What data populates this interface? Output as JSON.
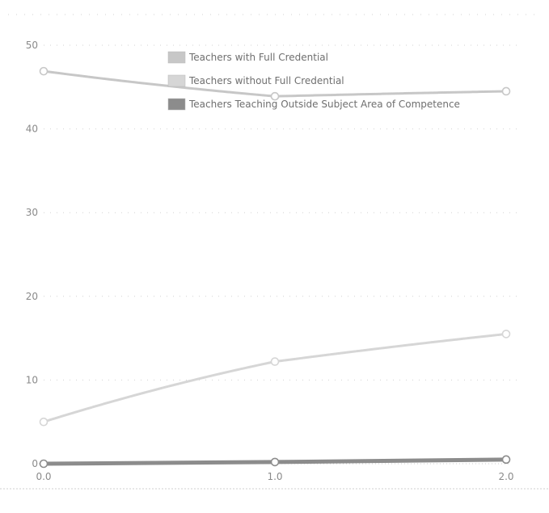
{
  "chart_data": {
    "type": "line",
    "title": "",
    "xlabel": "",
    "ylabel": "",
    "x": [
      0.0,
      1.0,
      2.0
    ],
    "x_tick_labels": [
      "0.0",
      "1.0",
      "2.0"
    ],
    "xlim": [
      0.0,
      2.0
    ],
    "ylim": [
      0,
      50
    ],
    "y_ticks": [
      0,
      10,
      20,
      30,
      40,
      50
    ],
    "y_tick_labels": [
      "0",
      "10",
      "20",
      "30",
      "40",
      "50"
    ],
    "grid": "dotted horizontal",
    "legend_position": "top-right",
    "series": [
      {
        "name": "Teachers with Full Credential",
        "values": [
          46.9,
          43.9,
          44.5
        ],
        "color": "#c7c7c7"
      },
      {
        "name": "Teachers without Full Credential",
        "values": [
          5.0,
          12.2,
          15.5
        ],
        "color": "#d6d6d6"
      },
      {
        "name": "Teachers Teaching Outside Subject Area of Competence",
        "values": [
          0.0,
          0.2,
          0.5
        ],
        "color": "#8c8c8c"
      }
    ]
  }
}
